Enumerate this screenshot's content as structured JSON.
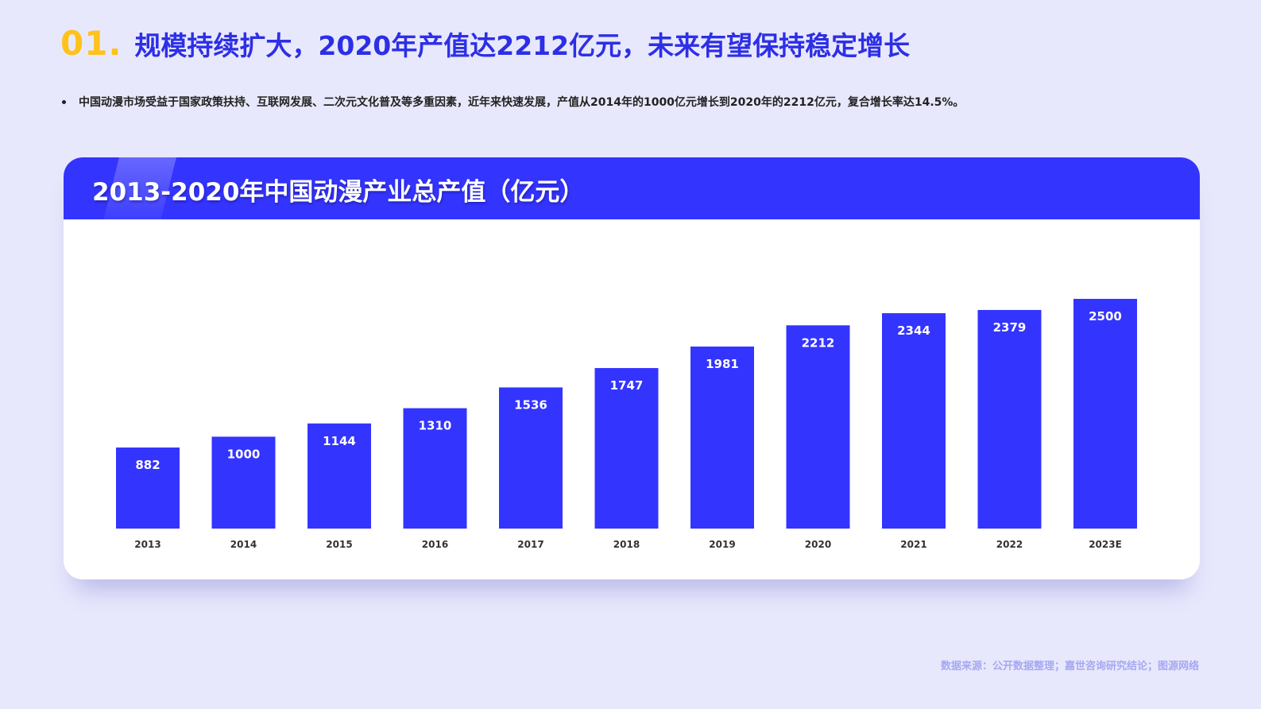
{
  "headline": {
    "number": "01.",
    "title": "规模持续扩大，2020年产值达2212亿元，未来有望保持稳定增长"
  },
  "bullet": "中国动漫市场受益于国家政策扶持、互联网发展、二次元文化普及等多重因素，近年来快速发展，产值从2014年的1000亿元增长到2020年的2212亿元，复合增长率达14.5%。",
  "card": {
    "title": "2013-2020年中国动漫产业总产值（亿元）"
  },
  "source": "数据来源：公开数据整理；嘉世咨询研究结论；图源网络",
  "colors": {
    "accent_yellow": "#ffc21a",
    "brand_blue": "#3434ff",
    "headline_blue": "#2d2fe6",
    "background": "#e8e8fc"
  },
  "chart_data": {
    "type": "bar",
    "title": "2013-2020年中国动漫产业总产值（亿元）",
    "categories": [
      "2013",
      "2014",
      "2015",
      "2016",
      "2017",
      "2018",
      "2019",
      "2020",
      "2021",
      "2022",
      "2023E"
    ],
    "values": [
      882,
      1000,
      1144,
      1310,
      1536,
      1747,
      1981,
      2212,
      2344,
      2379,
      2500
    ],
    "xlabel": "",
    "ylabel": "",
    "ylim": [
      0,
      2500
    ],
    "grid": false,
    "data_labels": true,
    "bar_color": "#3434ff"
  }
}
